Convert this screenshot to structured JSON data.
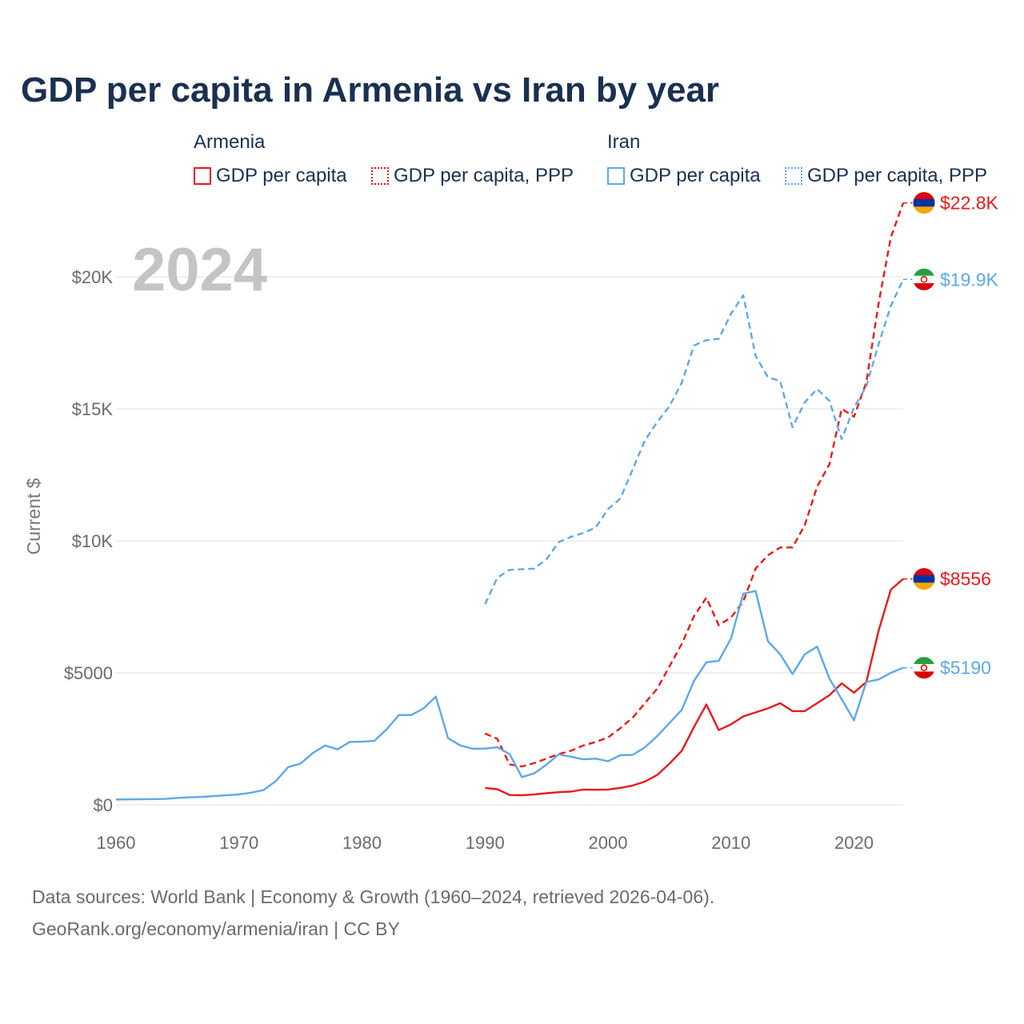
{
  "title": "GDP per capita in Armenia vs Iran by year",
  "legend": {
    "groups": [
      {
        "name": "Armenia",
        "items": [
          "GDP per capita",
          "GDP per capita, PPP"
        ]
      },
      {
        "name": "Iran",
        "items": [
          "GDP per capita",
          "GDP per capita, PPP"
        ]
      }
    ]
  },
  "colors": {
    "armenia": "#e8191b",
    "iran": "#5ea8e8",
    "grid": "#e6e6e6"
  },
  "footer": {
    "sources": "Data sources: World Bank | Economy & Growth (1960–2024, retrieved 2026-04-06).",
    "link": "GeoRank.org/economy/armenia/iran | CC BY"
  },
  "chart_data": {
    "type": "line",
    "title": "GDP per capita in Armenia vs Iran by year",
    "year_label": "2024",
    "xlabel": "",
    "ylabel": "Current $",
    "xlim": [
      1960,
      2024
    ],
    "ylim": [
      0,
      23000
    ],
    "x_ticks": [
      1960,
      1970,
      1980,
      1990,
      2000,
      2010,
      2020
    ],
    "x_tick_labels": [
      "1960",
      "1970",
      "1980",
      "1990",
      "2000",
      "2010",
      "2020"
    ],
    "y_ticks": [
      0,
      5000,
      10000,
      15000,
      20000
    ],
    "y_tick_labels": [
      "$0",
      "$5000",
      "$10K",
      "$15K",
      "$20K"
    ],
    "grid": true,
    "series": [
      {
        "name": "Armenia GDP per capita",
        "country": "armenia",
        "style": "solid",
        "end_label": "$8556",
        "x": [
          1990,
          1991,
          1992,
          1993,
          1994,
          1995,
          1996,
          1997,
          1998,
          1999,
          2000,
          2001,
          2002,
          2003,
          2004,
          2005,
          2006,
          2007,
          2008,
          2009,
          2010,
          2011,
          2012,
          2013,
          2014,
          2015,
          2016,
          2017,
          2018,
          2019,
          2020,
          2021,
          2022,
          2023,
          2024
        ],
        "y": [
          640,
          590,
          370,
          360,
          390,
          440,
          480,
          500,
          580,
          570,
          580,
          640,
          730,
          880,
          1130,
          1560,
          2050,
          2950,
          3800,
          2830,
          3050,
          3350,
          3500,
          3650,
          3850,
          3550,
          3550,
          3850,
          4150,
          4600,
          4250,
          4650,
          6600,
          8150,
          8556
        ]
      },
      {
        "name": "Armenia GDP per capita, PPP",
        "country": "armenia",
        "style": "dashed",
        "end_label": "$22.8K",
        "x": [
          1990,
          1991,
          1992,
          1993,
          1994,
          1995,
          1996,
          1997,
          1998,
          1999,
          2000,
          2001,
          2002,
          2003,
          2004,
          2005,
          2006,
          2007,
          2008,
          2009,
          2010,
          2011,
          2012,
          2013,
          2014,
          2015,
          2016,
          2017,
          2018,
          2019,
          2020,
          2021,
          2022,
          2023,
          2024
        ],
        "y": [
          2700,
          2500,
          1530,
          1450,
          1580,
          1750,
          1920,
          2050,
          2250,
          2380,
          2550,
          2900,
          3300,
          3850,
          4400,
          5250,
          6100,
          7150,
          7850,
          6800,
          7100,
          7700,
          8950,
          9450,
          9750,
          9750,
          10600,
          12050,
          12900,
          15000,
          14700,
          16000,
          19000,
          21500,
          22800
        ]
      },
      {
        "name": "Iran GDP per capita",
        "country": "iran",
        "style": "solid",
        "end_label": "$5190",
        "x": [
          1960,
          1961,
          1962,
          1963,
          1964,
          1965,
          1966,
          1967,
          1968,
          1969,
          1970,
          1971,
          1972,
          1973,
          1974,
          1975,
          1976,
          1977,
          1978,
          1979,
          1980,
          1981,
          1982,
          1983,
          1984,
          1985,
          1986,
          1987,
          1988,
          1989,
          1990,
          1991,
          1992,
          1993,
          1994,
          1995,
          1996,
          1997,
          1998,
          1999,
          2000,
          2001,
          2002,
          2003,
          2004,
          2005,
          2006,
          2007,
          2008,
          2009,
          2010,
          2011,
          2012,
          2013,
          2014,
          2015,
          2016,
          2017,
          2018,
          2019,
          2020,
          2021,
          2022,
          2023,
          2024
        ],
        "y": [
          200,
          205,
          210,
          215,
          225,
          260,
          285,
          300,
          330,
          360,
          390,
          460,
          560,
          900,
          1430,
          1560,
          1960,
          2250,
          2100,
          2380,
          2390,
          2420,
          2860,
          3400,
          3400,
          3650,
          4100,
          2520,
          2250,
          2120,
          2130,
          2180,
          1920,
          1050,
          1190,
          1520,
          1910,
          1820,
          1720,
          1750,
          1650,
          1880,
          1890,
          2180,
          2600,
          3100,
          3600,
          4700,
          5400,
          5450,
          6300,
          8000,
          8100,
          6200,
          5700,
          4950,
          5700,
          5990,
          4780,
          4000,
          3200,
          4650,
          4750,
          5000,
          5190
        ]
      },
      {
        "name": "Iran GDP per capita, PPP",
        "country": "iran",
        "style": "dashed",
        "end_label": "$19.9K",
        "x": [
          1990,
          1991,
          1992,
          1993,
          1994,
          1995,
          1996,
          1997,
          1998,
          1999,
          2000,
          2001,
          2002,
          2003,
          2004,
          2005,
          2006,
          2007,
          2008,
          2009,
          2010,
          2011,
          2012,
          2013,
          2014,
          2015,
          2016,
          2017,
          2018,
          2019,
          2020,
          2021,
          2022,
          2023,
          2024
        ],
        "y": [
          7600,
          8600,
          8900,
          8920,
          8950,
          9300,
          9950,
          10150,
          10300,
          10500,
          11200,
          11600,
          12700,
          13800,
          14500,
          15100,
          16000,
          17400,
          17600,
          17650,
          18600,
          19300,
          17000,
          16200,
          16050,
          14300,
          15250,
          15750,
          15300,
          13850,
          15050,
          15850,
          17450,
          18900,
          19900
        ]
      }
    ]
  }
}
